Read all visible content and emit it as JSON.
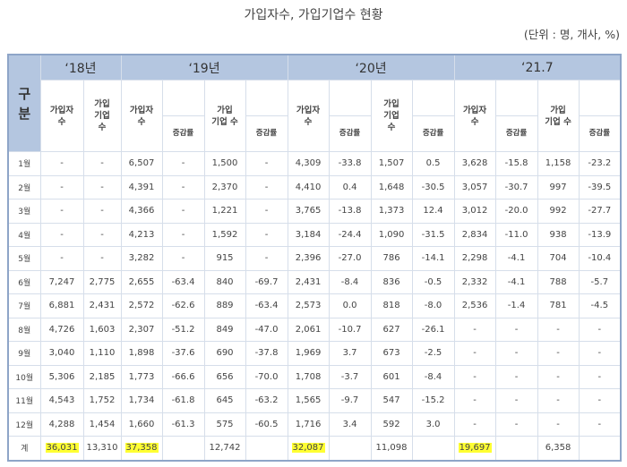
{
  "title": "가입자수, 가입기업수 현황",
  "unit": "(단위 : 명, 개사, %)",
  "header": {
    "gubun": "구\n분",
    "years": [
      "‘18년",
      "‘19년",
      "‘20년",
      "‘21.7"
    ],
    "members_label": "가입자\n수",
    "companies_label_18": "가입\n기업\n수",
    "companies_label": "가입\n기업 수",
    "companies_label_20": "가입\n기업\n수",
    "rate_label": "증감률"
  },
  "colors": {
    "header_bg": "#b4c6e0",
    "border": "#8ea5c8",
    "highlight": "#ffff33"
  },
  "chart_data": {
    "type": "table",
    "title": "가입자수, 가입기업수 현황",
    "columns": [
      "구분",
      "'18 가입자수",
      "'18 가입기업수",
      "'19 가입자수",
      "'19 증감률",
      "'19 가입기업수",
      "'19 증감률",
      "'20 가입자수",
      "'20 증감률",
      "'20 가입기업수",
      "'20 증감률",
      "'21.7 가입자수",
      "'21.7 증감률",
      "'21.7 가입기업수",
      "'21.7 증감률"
    ]
  },
  "rows": [
    {
      "m": "1월",
      "c": [
        "-",
        "-",
        "6,507",
        "-",
        "1,500",
        "-",
        "4,309",
        "-33.8",
        "1,507",
        "0.5",
        "3,628",
        "-15.8",
        "1,158",
        "-23.2"
      ]
    },
    {
      "m": "2월",
      "c": [
        "-",
        "-",
        "4,391",
        "-",
        "2,370",
        "-",
        "4,410",
        "0.4",
        "1,648",
        "-30.5",
        "3,057",
        "-30.7",
        "997",
        "-39.5"
      ]
    },
    {
      "m": "3월",
      "c": [
        "-",
        "-",
        "4,366",
        "-",
        "1,221",
        "-",
        "3,765",
        "-13.8",
        "1,373",
        "12.4",
        "3,012",
        "-20.0",
        "992",
        "-27.7"
      ]
    },
    {
      "m": "4월",
      "c": [
        "-",
        "-",
        "4,213",
        "-",
        "1,592",
        "-",
        "3,184",
        "-24.4",
        "1,090",
        "-31.5",
        "2,834",
        "-11.0",
        "938",
        "-13.9"
      ]
    },
    {
      "m": "5월",
      "c": [
        "-",
        "-",
        "3,282",
        "-",
        "915",
        "-",
        "2,396",
        "-27.0",
        "786",
        "-14.1",
        "2,298",
        "-4.1",
        "704",
        "-10.4"
      ]
    },
    {
      "m": "6월",
      "c": [
        "7,247",
        "2,775",
        "2,655",
        "-63.4",
        "840",
        "-69.7",
        "2,431",
        "-8.4",
        "836",
        "-0.5",
        "2,332",
        "-4.1",
        "788",
        "-5.7"
      ]
    },
    {
      "m": "7월",
      "c": [
        "6,881",
        "2,431",
        "2,572",
        "-62.6",
        "889",
        "-63.4",
        "2,573",
        "0.0",
        "818",
        "-8.0",
        "2,536",
        "-1.4",
        "781",
        "-4.5"
      ]
    },
    {
      "m": "8월",
      "c": [
        "4,726",
        "1,603",
        "2,307",
        "-51.2",
        "849",
        "-47.0",
        "2,061",
        "-10.7",
        "627",
        "-26.1",
        "-",
        "-",
        "-",
        "-"
      ]
    },
    {
      "m": "9월",
      "c": [
        "3,040",
        "1,110",
        "1,898",
        "-37.6",
        "690",
        "-37.8",
        "1,969",
        "3.7",
        "673",
        "-2.5",
        "-",
        "-",
        "-",
        "-"
      ]
    },
    {
      "m": "10월",
      "c": [
        "5,306",
        "2,185",
        "1,773",
        "-66.6",
        "656",
        "-70.0",
        "1,708",
        "-3.7",
        "601",
        "-8.4",
        "-",
        "-",
        "-",
        "-"
      ]
    },
    {
      "m": "11월",
      "c": [
        "4,543",
        "1,752",
        "1,734",
        "-61.8",
        "645",
        "-63.2",
        "1,565",
        "-9.7",
        "547",
        "-15.2",
        "-",
        "-",
        "-",
        "-"
      ]
    },
    {
      "m": "12월",
      "c": [
        "4,288",
        "1,454",
        "1,660",
        "-61.3",
        "575",
        "-60.5",
        "1,716",
        "3.4",
        "592",
        "3.0",
        "-",
        "-",
        "-",
        "-"
      ]
    }
  ],
  "total": {
    "label": "계",
    "c": [
      "36,031",
      "13,310",
      "37,358",
      "",
      "12,742",
      "",
      "32,087",
      "",
      "11,098",
      "",
      "19,697",
      "",
      "6,358",
      ""
    ],
    "highlighted": [
      0,
      2,
      6,
      10
    ]
  }
}
